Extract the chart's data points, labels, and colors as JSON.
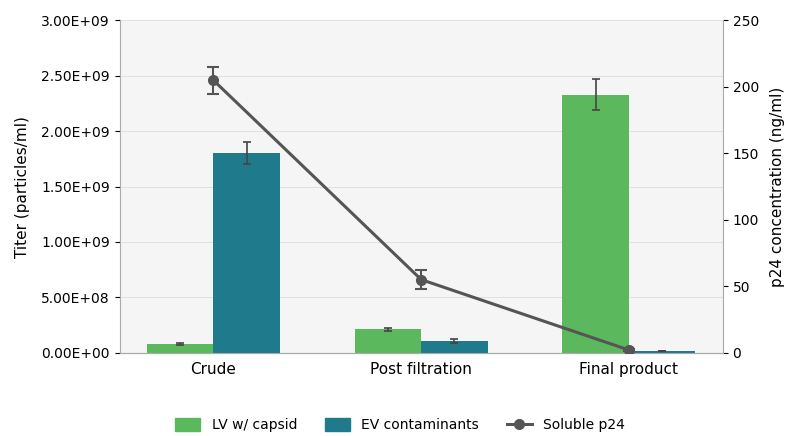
{
  "categories": [
    "Crude",
    "Post filtration",
    "Final product"
  ],
  "lv_capsid": [
    80000000.0,
    210000000.0,
    2330000000.0
  ],
  "lv_capsid_err": [
    8000000.0,
    15000000.0,
    140000000.0
  ],
  "ev_contaminants": [
    1800000000.0,
    105000000.0,
    15000000.0
  ],
  "ev_contaminants_err": [
    100000000.0,
    15000000.0,
    4000000.0
  ],
  "soluble_p24": [
    205,
    55,
    2
  ],
  "soluble_p24_err": [
    10,
    7,
    1
  ],
  "lv_color": "#5cb85c",
  "ev_color": "#1f7a8c",
  "p24_color": "#555555",
  "err_color": "#444444",
  "ylabel_left": "Titer (particles/ml)",
  "ylabel_right": "p24 concentration (ng/ml)",
  "ylim_left": [
    0,
    3000000000.0
  ],
  "ylim_right": [
    0,
    250
  ],
  "yticks_left": [
    0,
    500000000.0,
    1000000000.0,
    1500000000.0,
    2000000000.0,
    2500000000.0,
    3000000000.0
  ],
  "ytick_labels_left": [
    "0.00E+00",
    "5.00E+08",
    "1.00E+09",
    "1.50E+09",
    "2.00E+09",
    "2.50E+09",
    "3.00E+09"
  ],
  "yticks_right": [
    0,
    50,
    100,
    150,
    200,
    250
  ],
  "legend_labels": [
    "LV w/ capsid",
    "EV contaminants",
    "Soluble p24"
  ],
  "bar_width": 0.32,
  "background_color": "#ffffff",
  "grid_color": "#dddddd",
  "plot_bg": "#f5f5f5"
}
